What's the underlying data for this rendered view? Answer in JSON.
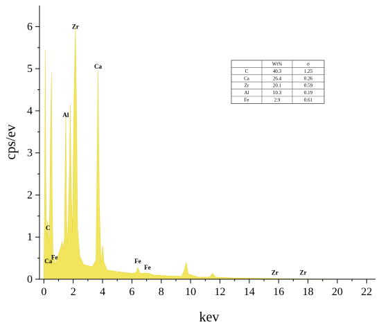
{
  "chart_data": {
    "type": "area",
    "title": "",
    "xlabel": "kev",
    "ylabel": "cps/ev",
    "xlim": [
      -0.3,
      22.6
    ],
    "ylim": [
      0,
      6.5
    ],
    "x_ticks": [
      0,
      2,
      4,
      6,
      8,
      10,
      12,
      14,
      16,
      18,
      20,
      22
    ],
    "y_ticks": [
      0,
      1,
      2,
      3,
      4,
      5,
      6
    ],
    "fill_color": "#f2e55e",
    "spectrum": [
      [
        0.0,
        0.3
      ],
      [
        0.05,
        2.0
      ],
      [
        0.1,
        5.45
      ],
      [
        0.13,
        2.5
      ],
      [
        0.18,
        0.9
      ],
      [
        0.26,
        1.4
      ],
      [
        0.3,
        1.05
      ],
      [
        0.35,
        0.85
      ],
      [
        0.4,
        1.8
      ],
      [
        0.45,
        3.5
      ],
      [
        0.52,
        4.9
      ],
      [
        0.56,
        2.2
      ],
      [
        0.62,
        0.6
      ],
      [
        0.71,
        0.5
      ],
      [
        0.76,
        0.35
      ],
      [
        0.86,
        0.45
      ],
      [
        0.95,
        0.55
      ],
      [
        1.1,
        0.7
      ],
      [
        1.25,
        0.9
      ],
      [
        1.32,
        0.7
      ],
      [
        1.4,
        1.0
      ],
      [
        1.49,
        3.9
      ],
      [
        1.55,
        1.4
      ],
      [
        1.62,
        0.8
      ],
      [
        1.74,
        2.6
      ],
      [
        1.8,
        4.15
      ],
      [
        1.86,
        2.2
      ],
      [
        1.95,
        1.1
      ],
      [
        2.04,
        4.0
      ],
      [
        2.1,
        5.2
      ],
      [
        2.15,
        6.0
      ],
      [
        2.22,
        4.2
      ],
      [
        2.3,
        1.2
      ],
      [
        2.45,
        0.55
      ],
      [
        2.7,
        0.35
      ],
      [
        3.0,
        0.32
      ],
      [
        3.3,
        0.3
      ],
      [
        3.55,
        0.45
      ],
      [
        3.69,
        4.95
      ],
      [
        3.78,
        1.8
      ],
      [
        3.9,
        0.35
      ],
      [
        4.01,
        0.8
      ],
      [
        4.1,
        0.4
      ],
      [
        4.3,
        0.22
      ],
      [
        5.0,
        0.18
      ],
      [
        6.0,
        0.14
      ],
      [
        6.3,
        0.16
      ],
      [
        6.4,
        0.28
      ],
      [
        6.55,
        0.14
      ],
      [
        7.06,
        0.15
      ],
      [
        7.5,
        0.1
      ],
      [
        8.5,
        0.08
      ],
      [
        9.4,
        0.07
      ],
      [
        9.6,
        0.25
      ],
      [
        9.7,
        0.4
      ],
      [
        9.85,
        0.12
      ],
      [
        10.5,
        0.05
      ],
      [
        11.3,
        0.05
      ],
      [
        11.5,
        0.14
      ],
      [
        11.7,
        0.05
      ],
      [
        13.0,
        0.03
      ],
      [
        15.0,
        0.02
      ],
      [
        17.0,
        0.01
      ],
      [
        19.0,
        0.005
      ],
      [
        22.6,
        0.002
      ]
    ],
    "peak_labels": [
      {
        "text": "C",
        "x": 0.28,
        "y": 1.12
      },
      {
        "text": "Ca",
        "x": 0.3,
        "y": 0.33
      },
      {
        "text": "Fe",
        "x": 0.72,
        "y": 0.42
      },
      {
        "text": "Al",
        "x": 1.49,
        "y": 3.8
      },
      {
        "text": "Zr",
        "x": 2.15,
        "y": 5.9
      },
      {
        "text": "Ca",
        "x": 3.69,
        "y": 4.95
      },
      {
        "text": "Fe",
        "x": 6.4,
        "y": 0.33
      },
      {
        "text": "Fe",
        "x": 7.06,
        "y": 0.18
      },
      {
        "text": "Zr",
        "x": 15.75,
        "y": 0.06
      },
      {
        "text": "Zr",
        "x": 17.67,
        "y": 0.06
      }
    ],
    "table": {
      "headers": [
        "",
        "Wt%",
        "σ"
      ],
      "rows": [
        [
          "C",
          "40.3",
          "1.25"
        ],
        [
          "Ca",
          "26.4",
          "0.26"
        ],
        [
          "Zr",
          "20.1",
          "0.59"
        ],
        [
          "Al",
          "10.3",
          "0.19"
        ],
        [
          "Fe",
          "2.9",
          "0.61"
        ]
      ]
    }
  }
}
